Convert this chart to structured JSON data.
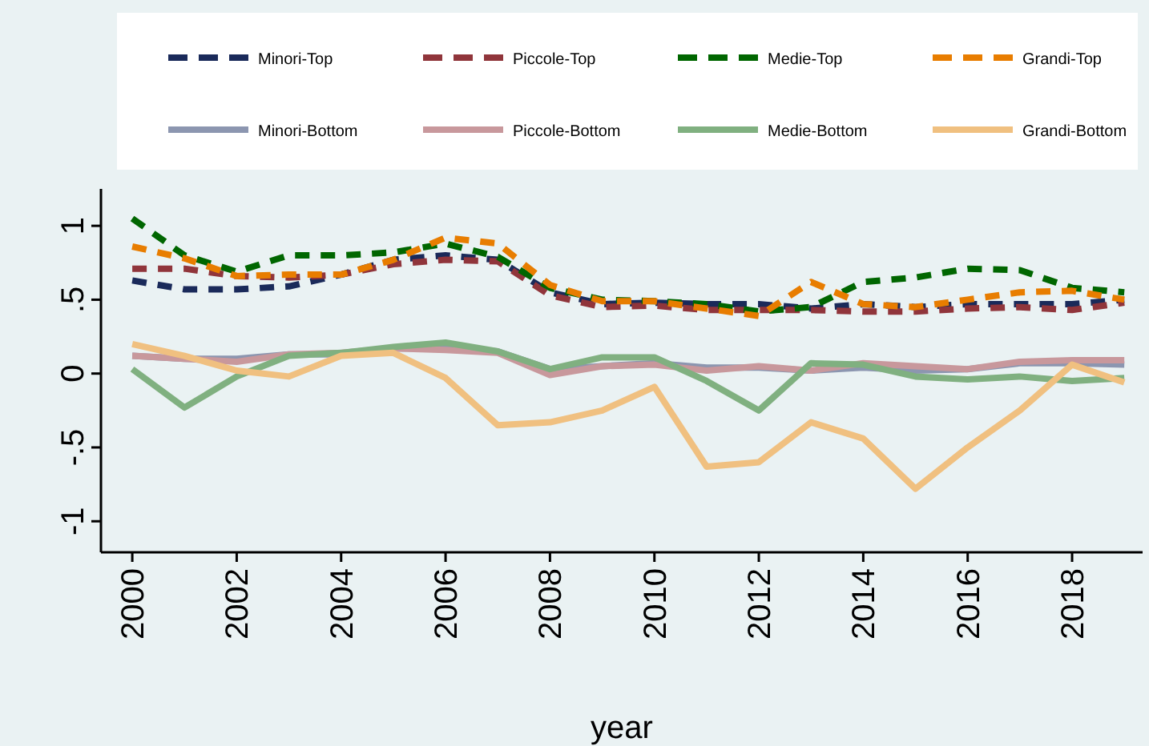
{
  "chart_data": {
    "type": "line",
    "xlabel": "year",
    "x": [
      2000,
      2001,
      2002,
      2003,
      2004,
      2005,
      2006,
      2007,
      2008,
      2009,
      2010,
      2011,
      2012,
      2013,
      2014,
      2015,
      2016,
      2017,
      2018,
      2019
    ],
    "xlim": [
      1999.4,
      2019.35
    ],
    "xticks": [
      2000,
      2002,
      2004,
      2006,
      2008,
      2010,
      2012,
      2014,
      2016,
      2018
    ],
    "ylim": [
      -1.21,
      1.25
    ],
    "yticks": [
      {
        "value": -1,
        "label": "-1"
      },
      {
        "value": -0.5,
        "label": "-.5"
      },
      {
        "value": 0,
        "label": "0"
      },
      {
        "value": 0.5,
        "label": ".5"
      },
      {
        "value": 1,
        "label": "1"
      }
    ],
    "grid": false,
    "legend": "top",
    "marker": "none",
    "series": [
      {
        "name": "Minori-Top",
        "color": "#1a2a5a",
        "line_style": "dashed",
        "values": [
          0.63,
          0.57,
          0.57,
          0.59,
          0.67,
          0.77,
          0.8,
          0.77,
          0.55,
          0.47,
          0.48,
          0.47,
          0.47,
          0.44,
          0.47,
          0.45,
          0.47,
          0.47,
          0.47,
          0.5
        ]
      },
      {
        "name": "Piccole-Top",
        "color": "#90353b",
        "line_style": "dashed",
        "values": [
          0.71,
          0.71,
          0.66,
          0.65,
          0.67,
          0.74,
          0.77,
          0.76,
          0.53,
          0.45,
          0.46,
          0.43,
          0.43,
          0.43,
          0.42,
          0.42,
          0.44,
          0.45,
          0.43,
          0.48
        ]
      },
      {
        "name": "Medie-Top",
        "color": "#006600",
        "line_style": "dashed",
        "values": [
          1.05,
          0.8,
          0.69,
          0.8,
          0.8,
          0.82,
          0.88,
          0.79,
          0.58,
          0.5,
          0.49,
          0.47,
          0.42,
          0.45,
          0.62,
          0.65,
          0.71,
          0.7,
          0.58,
          0.55
        ]
      },
      {
        "name": "Grandi-Top",
        "color": "#e87d00",
        "line_style": "dashed",
        "values": [
          0.86,
          0.78,
          0.66,
          0.67,
          0.67,
          0.77,
          0.92,
          0.88,
          0.6,
          0.49,
          0.49,
          0.44,
          0.39,
          0.62,
          0.47,
          0.45,
          0.5,
          0.55,
          0.56,
          0.5
        ]
      },
      {
        "name": "Minori-Bottom",
        "color": "#8c96b0",
        "line_style": "solid",
        "values": [
          0.12,
          0.1,
          0.1,
          0.13,
          0.13,
          0.17,
          0.17,
          0.15,
          0.03,
          0.05,
          0.07,
          0.04,
          0.04,
          0.02,
          0.04,
          0.02,
          0.03,
          0.07,
          0.07,
          0.06
        ]
      },
      {
        "name": "Piccole-Bottom",
        "color": "#c8989c",
        "line_style": "solid",
        "values": [
          0.12,
          0.1,
          0.08,
          0.13,
          0.14,
          0.17,
          0.16,
          0.14,
          -0.01,
          0.05,
          0.06,
          0.02,
          0.05,
          0.02,
          0.07,
          0.05,
          0.03,
          0.08,
          0.09,
          0.09
        ]
      },
      {
        "name": "Medie-Bottom",
        "color": "#80b080",
        "line_style": "solid",
        "values": [
          0.03,
          -0.23,
          -0.02,
          0.12,
          0.14,
          0.18,
          0.21,
          0.15,
          0.03,
          0.11,
          0.11,
          -0.05,
          -0.25,
          0.07,
          0.06,
          -0.02,
          -0.04,
          -0.02,
          -0.05,
          -0.03
        ]
      },
      {
        "name": "Grandi-Bottom",
        "color": "#f0c080",
        "line_style": "solid",
        "values": [
          0.2,
          0.12,
          0.02,
          -0.02,
          0.12,
          0.14,
          -0.03,
          -0.35,
          -0.33,
          -0.25,
          -0.09,
          -0.63,
          -0.6,
          -0.33,
          -0.44,
          -0.78,
          -0.5,
          -0.25,
          0.06,
          -0.06
        ]
      }
    ]
  }
}
